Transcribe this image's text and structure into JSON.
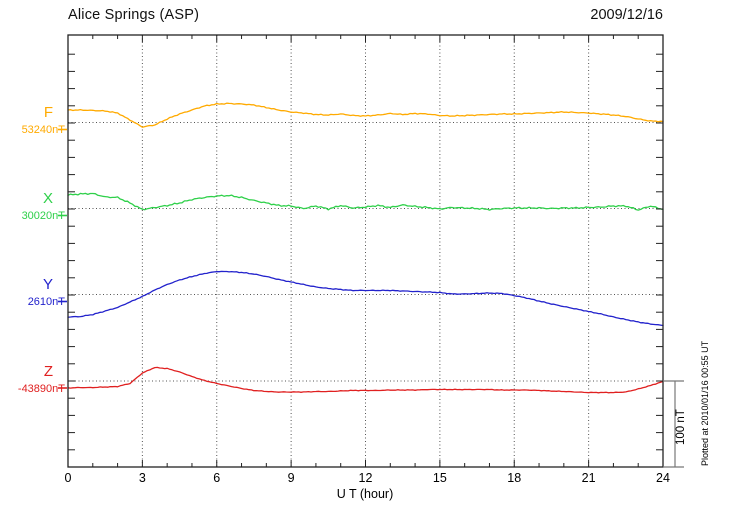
{
  "header": {
    "title": "Alice Springs (ASP)",
    "date": "2009/12/16"
  },
  "xaxis": {
    "label": "U T (hour)",
    "tick_hours": [
      0,
      3,
      6,
      9,
      12,
      15,
      18,
      21,
      24
    ],
    "range_hours": [
      0,
      24
    ],
    "minor_tick_every_hours": 1,
    "major_tick_every_hours": 3
  },
  "scale_bar": {
    "label": "100 nT",
    "nT": 100
  },
  "annotation": {
    "plotted_at": "Plotted at 2010/01/16 00:55 UT"
  },
  "chart_data": {
    "type": "line",
    "title": "Alice Springs (ASP)",
    "date": "2009/12/16",
    "xlabel": "U T (hour)",
    "x_unit": "UT hour",
    "x_start": 0,
    "x_end": 24,
    "x_step": 0.5,
    "grid": {
      "vertical_dotted_every_hours": 3,
      "horizontal_dotted_at_each_series_baseline": true
    },
    "legend_position": "left margin, one colored label per trace",
    "series": [
      {
        "name": "F",
        "baseline_label": "53240nT",
        "baseline_nT": 53240,
        "color": "#ffaa00",
        "offsets_nT": [
          14.5,
          14.5,
          14,
          13.4,
          11,
          2.9,
          -5.2,
          -2.9,
          4.1,
          9.9,
          14.5,
          19.2,
          21.5,
          22.1,
          21.5,
          20.3,
          17.4,
          14.5,
          12.2,
          11,
          9.3,
          8.7,
          9.9,
          8.1,
          7.6,
          8.7,
          10.5,
          9.3,
          10.5,
          9.9,
          8.1,
          7.6,
          8.1,
          8.7,
          9.3,
          9.9,
          9.9,
          10.5,
          11,
          11.6,
          12.2,
          11.6,
          11,
          9.9,
          8.7,
          7,
          4.1,
          1.7,
          1.2
        ]
      },
      {
        "name": "X",
        "baseline_label": "30020nT",
        "baseline_nT": 30020,
        "color": "#2fd04a",
        "offsets_nT": [
          15.7,
          16.9,
          17.4,
          13.4,
          12.8,
          6.4,
          -1.2,
          1.2,
          3.5,
          6.4,
          10.5,
          12.8,
          14.5,
          15.1,
          12.8,
          9.3,
          6.4,
          3.5,
          2.9,
          0,
          2.9,
          -0.6,
          3.5,
          0.6,
          1.7,
          3.5,
          1.2,
          4.1,
          2.3,
          1.2,
          -0.6,
          1.2,
          0.6,
          0,
          -1.2,
          0,
          0.6,
          0.6,
          0.6,
          0,
          0.6,
          0.6,
          1.2,
          1.7,
          2.9,
          2.9,
          -1.7,
          2.9,
          -1.2
        ]
      },
      {
        "name": "Y",
        "baseline_label": "2610nT",
        "baseline_nT": 2610,
        "color": "#2222cc",
        "offsets_nT": [
          -26.2,
          -25.6,
          -23.3,
          -19.2,
          -15.1,
          -8.7,
          -2.3,
          5.2,
          11.6,
          16.9,
          20.9,
          24.4,
          26.7,
          26.7,
          25.6,
          23.8,
          20.9,
          17.4,
          14.5,
          11.6,
          8.7,
          7,
          5.8,
          4.7,
          4.7,
          4.7,
          4.7,
          4.1,
          3.5,
          2.9,
          2.3,
          0.6,
          0.6,
          1.2,
          1.7,
          1.2,
          -1.2,
          -4.1,
          -7.6,
          -11,
          -14,
          -16.9,
          -19.8,
          -22.7,
          -26.2,
          -29.1,
          -32,
          -34.3,
          -36
        ]
      },
      {
        "name": "Z",
        "baseline_label": "-43890nT",
        "baseline_nT": -43890,
        "color": "#e02020",
        "offsets_nT": [
          -8.1,
          -7.6,
          -7.6,
          -7,
          -6.4,
          -2.9,
          9.3,
          15.7,
          14.5,
          10.5,
          5.2,
          0.6,
          -2.9,
          -5.8,
          -8.7,
          -11,
          -12.2,
          -12.8,
          -12.8,
          -12.8,
          -12.2,
          -12.2,
          -11.6,
          -11,
          -11,
          -11,
          -10.5,
          -10.5,
          -10.5,
          -9.9,
          -9.9,
          -9.9,
          -9.9,
          -9.9,
          -9.9,
          -10.5,
          -10.5,
          -10.5,
          -11,
          -11.6,
          -12.2,
          -12.8,
          -13.4,
          -13.4,
          -13.4,
          -12.8,
          -9.3,
          -5.2,
          -0.6
        ]
      }
    ]
  }
}
